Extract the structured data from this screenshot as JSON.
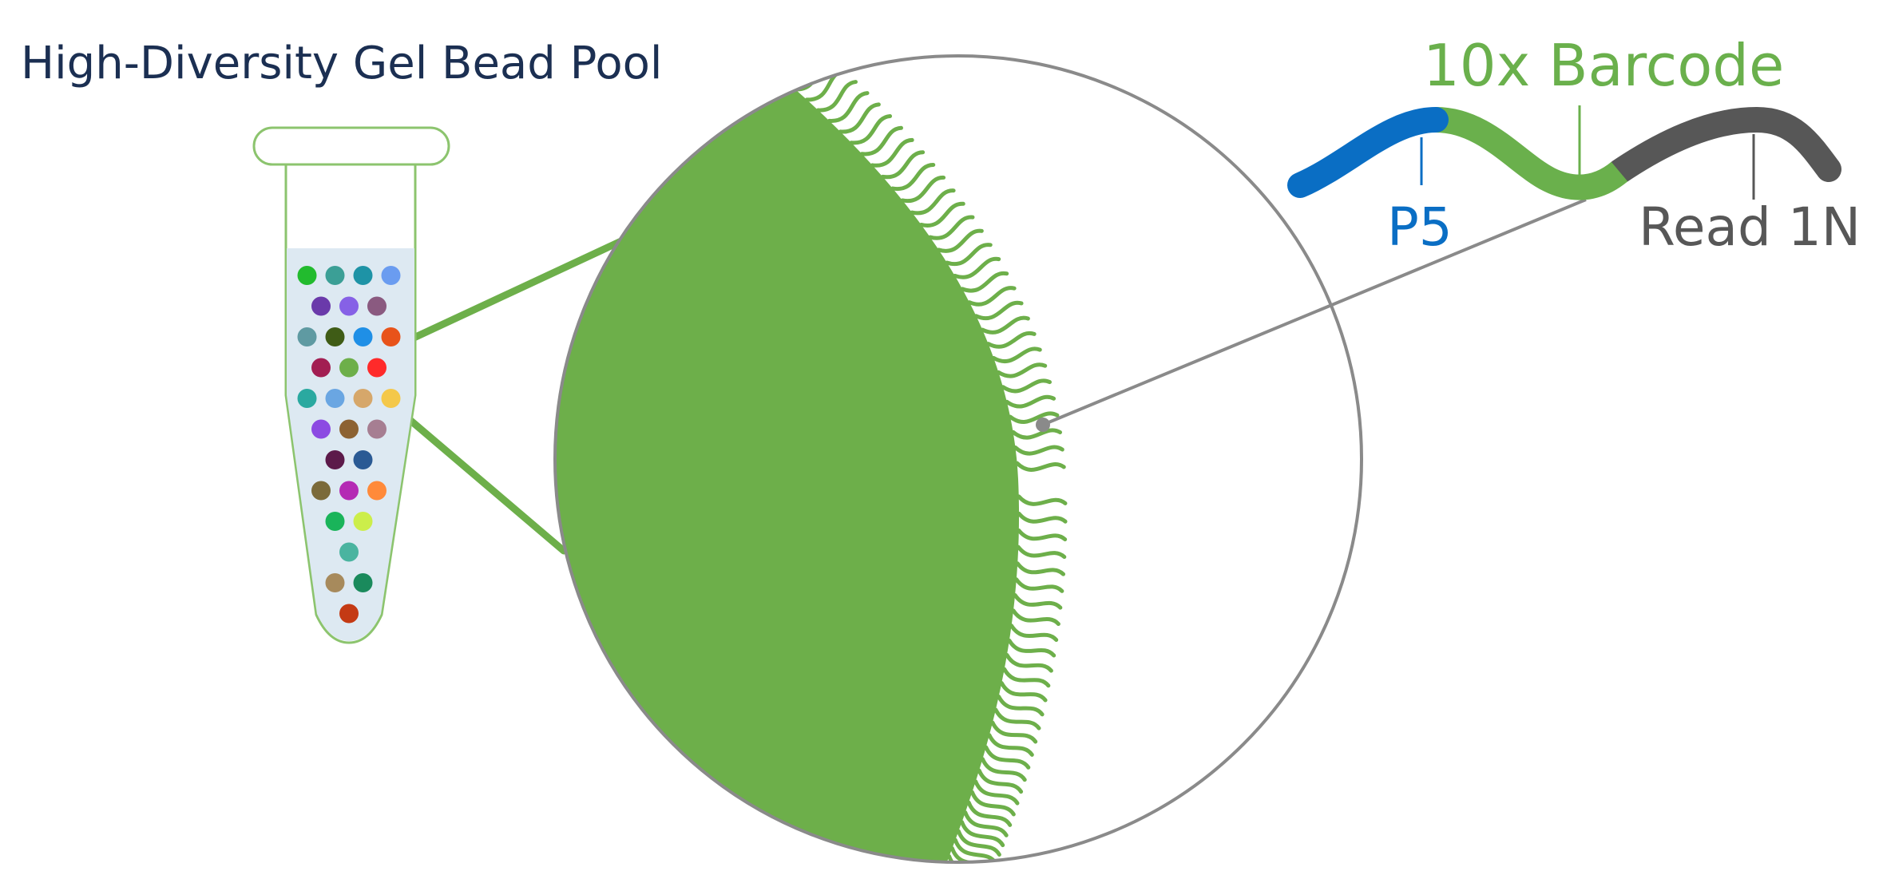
{
  "title": "High-Diversity Gel Bead Pool",
  "segments": {
    "p5": {
      "label": "P5",
      "color": "#0a6ec4"
    },
    "barcode": {
      "label": "10x Barcode",
      "color": "#6ab04c"
    },
    "read1n": {
      "label": "Read 1N",
      "color": "#575757"
    }
  },
  "colors": {
    "bead": "#6daf4a",
    "bead_oligo": "#6daf4a",
    "zoom_line": "#6daf4a",
    "magnifier": "#8a8a8a",
    "tube_outline": "#8cc46e",
    "tube_fill": "#dde9f2",
    "title": "#1b2f52"
  },
  "tube_beads": [
    [
      "#22bb2e",
      "#3b9f96",
      "#1e93a6",
      "#6a9cf0"
    ],
    [
      "#6a3aaa",
      "#8661e6",
      "#8a5a80"
    ],
    [
      "#5f9aa2",
      "#3f5c16",
      "#1f8fe6",
      "#e8531a"
    ],
    [
      "#a21e52",
      "#6daf4a",
      "#ff2a2a"
    ],
    [
      "#2aa9a0",
      "#6aa6e2",
      "#d6a76a",
      "#f4c84a"
    ],
    [
      "#8c4ae2",
      "#8c6232",
      "#a67e92"
    ],
    [
      "#5c1a4a",
      "#2a5a94"
    ],
    [
      "#7b6a3a",
      "#b42ab4",
      "#ff8a3a"
    ],
    [
      "#1ab45a",
      "#ccee4a"
    ],
    [
      "#4ab4a0"
    ],
    [
      "#a78a5c",
      "#1a8a5c"
    ],
    [
      "#c43a14"
    ]
  ]
}
